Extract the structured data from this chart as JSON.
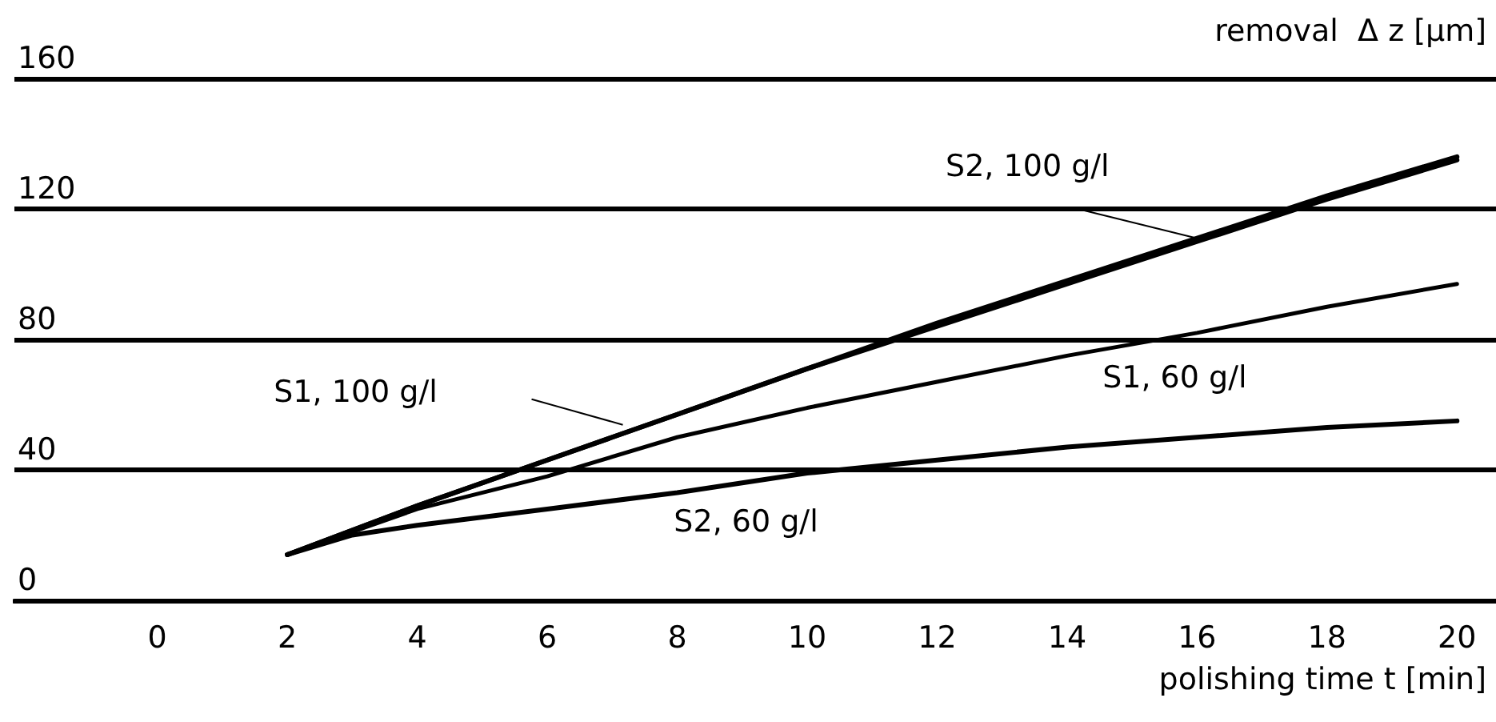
{
  "chart_data": {
    "type": "line",
    "xlabel": "polishing time t [min]",
    "ylabel": "removal  Δ z [µm]",
    "xlim": [
      -2.2,
      20.6
    ],
    "ylim": [
      0,
      160
    ],
    "xticks": [
      0,
      2,
      4,
      6,
      8,
      10,
      12,
      14,
      16,
      18,
      20
    ],
    "yticks": [
      0,
      40,
      80,
      120,
      160
    ],
    "grid": "y",
    "marker": "none",
    "line_style": "solid",
    "series": [
      {
        "name": "S2, 100 g/l",
        "color": "#000000",
        "x": [
          2,
          4,
          6,
          8,
          10,
          12,
          14,
          16,
          18,
          20
        ],
        "values": [
          14,
          29,
          43,
          57,
          71,
          85,
          98,
          111,
          124,
          136
        ]
      },
      {
        "name": "S1, 100 g/l",
        "color": "#000000",
        "x": [
          2,
          4,
          6,
          8,
          10,
          12,
          14,
          16,
          18,
          20
        ],
        "values": [
          14,
          29,
          43,
          57,
          71,
          84,
          97,
          110,
          123,
          135
        ]
      },
      {
        "name": "S1, 60 g/l",
        "color": "#000000",
        "x": [
          2,
          4,
          6,
          8,
          10,
          12,
          14,
          16,
          18,
          20
        ],
        "values": [
          14,
          28,
          38,
          50,
          59,
          67,
          75,
          82,
          90,
          97
        ]
      },
      {
        "name": "S2, 60 g/l",
        "color": "#000000",
        "x": [
          2,
          3,
          4,
          6,
          8,
          10,
          12,
          14,
          16,
          18,
          20
        ],
        "values": [
          14,
          20,
          23,
          28,
          33,
          39,
          43,
          47,
          50,
          53,
          55
        ]
      }
    ]
  }
}
